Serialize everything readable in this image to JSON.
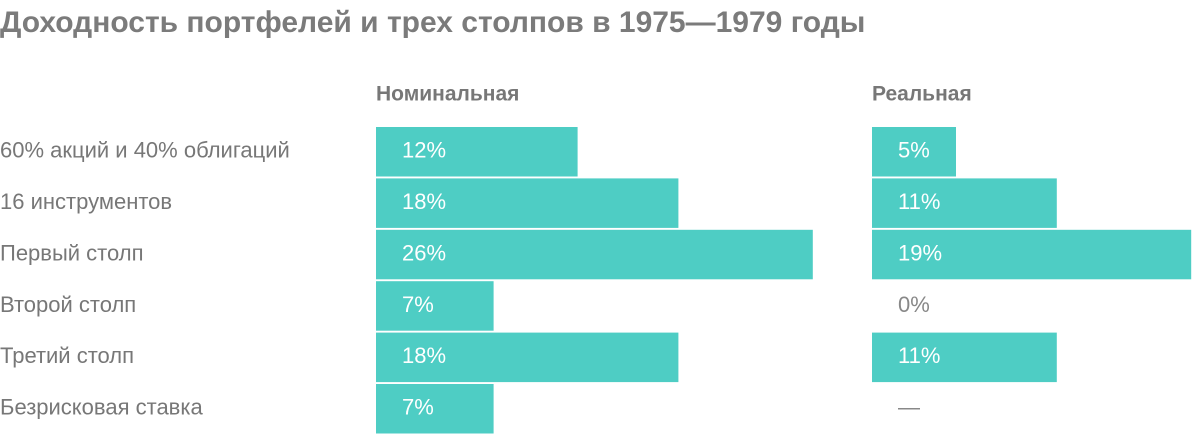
{
  "chart_data": {
    "type": "bar",
    "title": "Доходность портфелей и трех столпов в 1975—1979 годы",
    "categories": [
      "60% акций и 40% облигаций",
      "16 инструментов",
      "Первый столп",
      "Второй столп",
      "Третий столп",
      "Безрисковая ставка"
    ],
    "series": [
      {
        "name": "Номинальная",
        "color": "#4ecdc4",
        "values": [
          12,
          18,
          26,
          7,
          18,
          7
        ],
        "value_labels": [
          "12%",
          "18%",
          "26%",
          "7%",
          "18%",
          "7%"
        ]
      },
      {
        "name": "Реальная",
        "color": "#4ecdc4",
        "values": [
          5,
          11,
          19,
          0,
          11,
          null
        ],
        "value_labels": [
          "5%",
          "11%",
          "19%",
          "0%",
          "11%",
          "—"
        ]
      }
    ]
  }
}
